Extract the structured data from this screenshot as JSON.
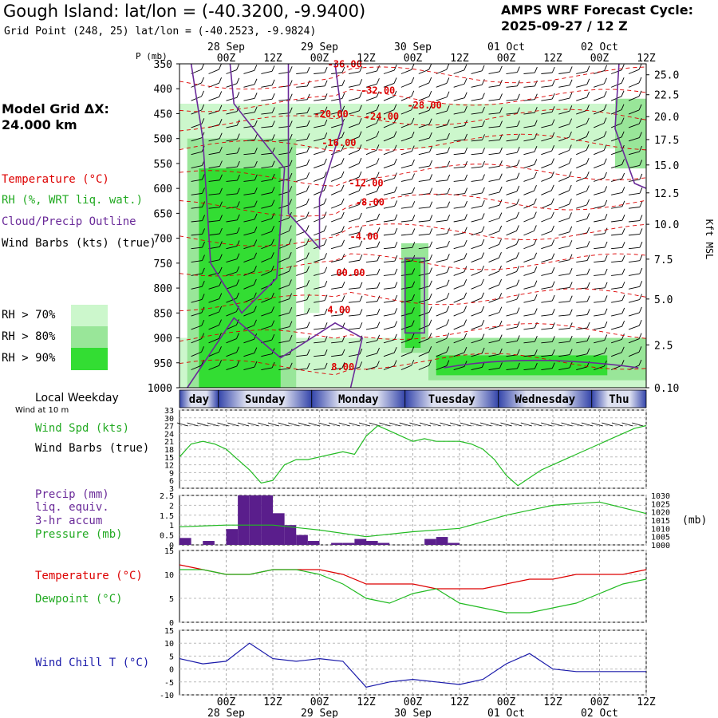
{
  "header": {
    "title": "Gough Island:  lat/lon = (-40.3200, -9.9400)",
    "subtitle": "Grid Point (248, 25) lat/lon = (-40.2523, -9.9824)",
    "cycle_line1": "AMPS WRF Forecast Cycle:",
    "cycle_line2": "2025-09-27 / 12  Z",
    "grid_line1": "Model Grid ΔX:",
    "grid_line2": " 24.000 km"
  },
  "legend": {
    "temperature": "Temperature (°C)",
    "rh": "RH (%, WRT liq. wat.)",
    "cloud": "Cloud/Precip Outline",
    "wind": "Wind Barbs (kts) (true)",
    "rh70": "RH > 70%",
    "rh80": "RH > 80%",
    "rh90": "RH > 90%",
    "colors": {
      "rh70": "#ccf7cc",
      "rh80": "#99e699",
      "rh90": "#33dd33",
      "temperature": "#dd0000",
      "cloud": "#6a2a99"
    }
  },
  "time_axis": {
    "hour_labels": [
      "00Z",
      "12Z",
      "00Z",
      "12Z",
      "00Z",
      "12Z",
      "00Z",
      "12Z",
      "00Z",
      "12Z"
    ],
    "hour_times": [
      12,
      24,
      36,
      48,
      60,
      72,
      84,
      96,
      108,
      120
    ],
    "date_labels": [
      "28 Sep",
      "29 Sep",
      "30 Sep",
      "01 Oct",
      "02 Oct"
    ],
    "date_times": [
      12,
      36,
      60,
      84,
      108
    ],
    "range": [
      0,
      120
    ]
  },
  "chart_data": [
    {
      "type": "heatmap",
      "name": "cross-section",
      "ylabel": "P (mb)",
      "ylim": [
        350,
        1000
      ],
      "y_ticks": [
        350,
        400,
        450,
        500,
        550,
        600,
        650,
        700,
        750,
        800,
        850,
        900,
        950,
        1000
      ],
      "right_axis_label": "Kft MSL",
      "right_ticks": [
        "25.0",
        "22.5",
        "20.0",
        "17.5",
        "15.0",
        "12.5",
        "10.0",
        "7.5",
        "5.0",
        "2.5",
        "0.10"
      ],
      "right_tick_pressures": [
        372,
        412,
        456,
        502,
        553,
        609,
        672,
        742,
        822,
        914,
        1000
      ],
      "temperature_labels": [
        {
          "text": "-36.00",
          "t": 42.5,
          "p": 357
        },
        {
          "text": "-32.00",
          "t": 51,
          "p": 410
        },
        {
          "text": "-28.00",
          "t": 63,
          "p": 440
        },
        {
          "text": "-24.00",
          "t": 52,
          "p": 462
        },
        {
          "text": "-20.00",
          "t": 39,
          "p": 457
        },
        {
          "text": "-16.00",
          "t": 41,
          "p": 515
        },
        {
          "text": "-12.00",
          "t": 48,
          "p": 596
        },
        {
          "text": "-8.00",
          "t": 49,
          "p": 634
        },
        {
          "text": "-4.00",
          "t": 47.5,
          "p": 703
        },
        {
          "text": "00.00",
          "t": 44,
          "p": 776
        },
        {
          "text": "4.00",
          "t": 41,
          "p": 850
        },
        {
          "text": "8.00",
          "t": 42,
          "p": 965
        }
      ],
      "rh_regions": [
        {
          "level": 70,
          "t0": 0,
          "t1": 120,
          "p0": 430,
          "p1": 520
        },
        {
          "level": 70,
          "t0": 0,
          "t1": 120,
          "p0": 900,
          "p1": 1000
        },
        {
          "level": 80,
          "t0": 2,
          "t1": 30,
          "p0": 500,
          "p1": 1000
        },
        {
          "level": 90,
          "t0": 5,
          "t1": 26,
          "p0": 560,
          "p1": 1000
        },
        {
          "level": 70,
          "t0": 32,
          "t1": 36,
          "p0": 700,
          "p1": 850
        },
        {
          "level": 80,
          "t0": 57,
          "t1": 64,
          "p0": 710,
          "p1": 930
        },
        {
          "level": 90,
          "t0": 58,
          "t1": 62,
          "p0": 740,
          "p1": 920
        },
        {
          "level": 80,
          "t0": 64,
          "t1": 120,
          "p0": 900,
          "p1": 985
        },
        {
          "level": 90,
          "t0": 66,
          "t1": 110,
          "p0": 935,
          "p1": 975
        },
        {
          "level": 80,
          "t0": 112,
          "t1": 120,
          "p0": 420,
          "p1": 560
        }
      ]
    },
    {
      "type": "line",
      "name": "wind-speed",
      "title_lines": [
        "Local Weekday"
      ],
      "days": [
        {
          "label": "day",
          "t0": 0,
          "t1": 10
        },
        {
          "label": "Sunday",
          "t0": 10,
          "t1": 34
        },
        {
          "label": "Monday",
          "t0": 34,
          "t1": 58
        },
        {
          "label": "Tuesday",
          "t0": 58,
          "t1": 82
        },
        {
          "label": "Wednesday",
          "t0": 82,
          "t1": 106
        },
        {
          "label": "Thu",
          "t0": 106,
          "t1": 120
        }
      ],
      "wind_note": "Wind at 10 m",
      "labels": [
        "Wind Spd (kts)",
        "Wind Barbs (true)"
      ],
      "y_ticks": [
        3,
        6,
        9,
        12,
        15,
        18,
        21,
        24,
        27,
        30,
        33
      ],
      "ylim": [
        3,
        33
      ],
      "x": [
        0,
        3,
        6,
        9,
        12,
        15,
        18,
        21,
        24,
        27,
        30,
        33,
        36,
        39,
        42,
        45,
        48,
        51,
        54,
        57,
        60,
        63,
        66,
        69,
        72,
        75,
        78,
        81,
        84,
        87,
        90,
        93,
        96,
        99,
        102,
        105,
        108,
        111,
        114,
        117,
        120
      ],
      "values": [
        15,
        20,
        21,
        20,
        18,
        14,
        10,
        5,
        6,
        12,
        14,
        14,
        15,
        16,
        17,
        16,
        23,
        27,
        25,
        23,
        21,
        22,
        21,
        21,
        21,
        20,
        18,
        14,
        8,
        4,
        7,
        10,
        12,
        14,
        16,
        18,
        20,
        22,
        24,
        26,
        27
      ]
    },
    {
      "type": "bar",
      "name": "precip-pressure",
      "labels": [
        "Precip (mm)",
        "liq. equiv.",
        "3-hr accum",
        "Pressure (mb)"
      ],
      "y_ticks": [
        "0",
        "0.5",
        "1",
        "1.5",
        "2",
        "2.5"
      ],
      "ylim": [
        0,
        2.5
      ],
      "right_ticks": [
        "1000",
        "1005",
        "1010",
        "1015",
        "1020",
        "1025",
        "1030"
      ],
      "right_lim": [
        1000,
        1030
      ],
      "right_unit": "(mb)",
      "bars_t": [
        0,
        3,
        6,
        9,
        12,
        15,
        18,
        21,
        24,
        27,
        30,
        33,
        36,
        39,
        42,
        45,
        48,
        51,
        54,
        57,
        60,
        63,
        66,
        69,
        72
      ],
      "bars": [
        0.35,
        0,
        0.2,
        0,
        0.8,
        2.5,
        2.5,
        2.5,
        1.6,
        1.0,
        0.5,
        0.2,
        0,
        0.1,
        0.1,
        0.3,
        0.2,
        0.1,
        0,
        0,
        0,
        0.3,
        0.4,
        0.1,
        0
      ],
      "pressure_x": [
        0,
        12,
        24,
        36,
        48,
        60,
        72,
        84,
        96,
        108,
        120
      ],
      "pressure": [
        1011,
        1012,
        1012,
        1009,
        1005,
        1008,
        1010,
        1018,
        1024,
        1026,
        1019
      ]
    },
    {
      "type": "line",
      "name": "temperature-dewpoint",
      "y_ticks": [
        0,
        5,
        10,
        15
      ],
      "ylim": [
        0,
        15
      ],
      "x": [
        0,
        6,
        12,
        18,
        24,
        30,
        36,
        42,
        48,
        54,
        60,
        66,
        72,
        78,
        84,
        90,
        96,
        102,
        108,
        114,
        120
      ],
      "series": [
        {
          "name": "Temperature (°C)",
          "color": "#dd0000",
          "values": [
            12,
            11,
            10,
            10,
            11,
            11,
            11,
            10,
            8,
            8,
            8,
            7,
            7,
            7,
            8,
            9,
            9,
            10,
            10,
            10,
            11
          ]
        },
        {
          "name": "Dewpoint (°C)",
          "color": "#22bb22",
          "values": [
            11,
            11,
            10,
            10,
            11,
            11,
            10,
            8,
            5,
            4,
            6,
            7,
            4,
            3,
            2,
            2,
            3,
            4,
            6,
            8,
            9
          ]
        }
      ]
    },
    {
      "type": "line",
      "name": "wind-chill",
      "labels": [
        "Wind Chill T (°C)"
      ],
      "y_ticks": [
        -10,
        -5,
        0,
        5,
        10,
        15
      ],
      "ylim": [
        -10,
        15
      ],
      "x": [
        0,
        6,
        12,
        18,
        24,
        30,
        36,
        42,
        48,
        54,
        60,
        66,
        72,
        78,
        84,
        90,
        96,
        102,
        108,
        114,
        120
      ],
      "series": [
        {
          "name": "Wind Chill T (°C)",
          "color": "#1a1aaa",
          "values": [
            4,
            2,
            3,
            10,
            4,
            3,
            4,
            3,
            -7,
            -5,
            -4,
            -5,
            -6,
            -4,
            2,
            6,
            0,
            -1,
            -1,
            -1,
            -1
          ]
        }
      ]
    }
  ]
}
